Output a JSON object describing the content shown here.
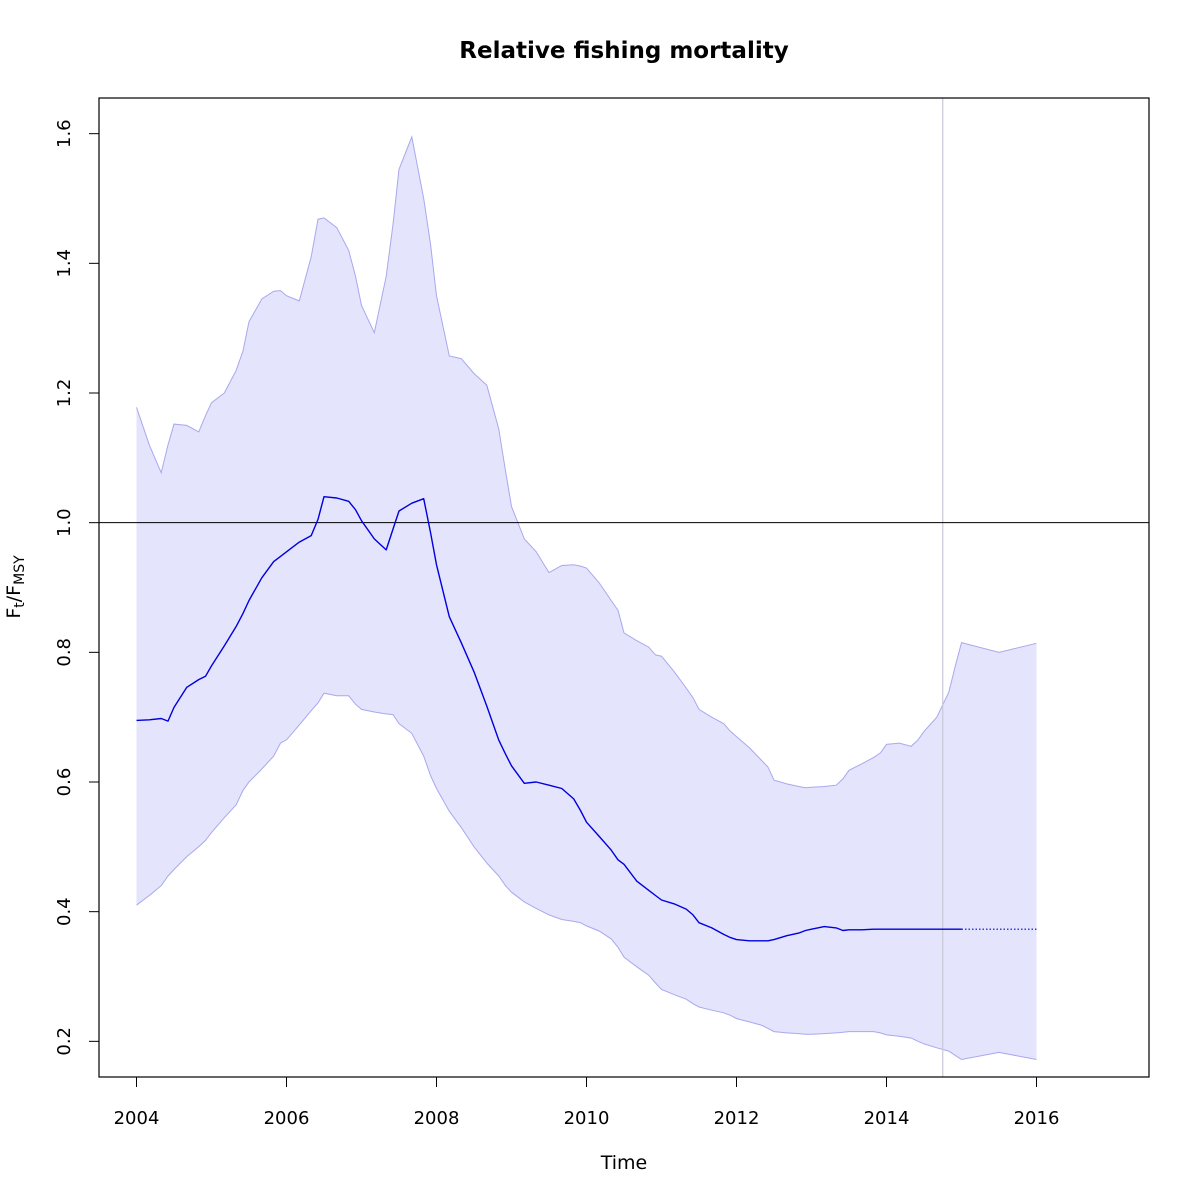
{
  "chart_data": {
    "type": "line",
    "title": "Relative fishing mortality",
    "xlabel": "Time",
    "ylabel": {
      "main": "F",
      "sub1": "t",
      "sep": "/F",
      "sub2": "MSY"
    },
    "xlim": [
      2003.5,
      2017.5
    ],
    "ylim": [
      0.145,
      1.655
    ],
    "x_ticks": [
      2004,
      2006,
      2008,
      2010,
      2012,
      2014,
      2016
    ],
    "y_ticks": [
      0.2,
      0.4,
      0.6,
      0.8,
      1.0,
      1.2,
      1.4,
      1.6
    ],
    "reference_line": 1.0,
    "vertical_line": 2014.75,
    "colors": {
      "line": "#0000dd",
      "band_fill": "#e4e4fc",
      "band_edge": "#a8a8ee",
      "vline": "#c8c8d8",
      "hline": "#000000"
    },
    "series": [
      {
        "role": "estimate",
        "x": [
          2004,
          2004.17,
          2004.33,
          2004.42,
          2004.5,
          2004.67,
          2004.83,
          2004.92,
          2005,
          2005.17,
          2005.33,
          2005.42,
          2005.5,
          2005.67,
          2005.83,
          2005.92,
          2006,
          2006.17,
          2006.33,
          2006.42,
          2006.5,
          2006.67,
          2006.83,
          2006.92,
          2007,
          2007.17,
          2007.33,
          2007.42,
          2007.5,
          2007.67,
          2007.83,
          2007.92,
          2008,
          2008.17,
          2008.33,
          2008.5,
          2008.67,
          2008.83,
          2008.92,
          2009,
          2009.17,
          2009.33,
          2009.5,
          2009.67,
          2009.83,
          2009.92,
          2010,
          2010.17,
          2010.33,
          2010.42,
          2010.5,
          2010.67,
          2010.83,
          2010.92,
          2011,
          2011.17,
          2011.33,
          2011.42,
          2011.5,
          2011.67,
          2011.83,
          2011.92,
          2012,
          2012.17,
          2012.33,
          2012.42,
          2012.5,
          2012.67,
          2012.83,
          2012.92,
          2013,
          2013.17,
          2013.33,
          2013.42,
          2013.5,
          2013.67,
          2013.83,
          2013.92,
          2014,
          2014.17,
          2014.33,
          2014.42,
          2014.5,
          2014.67,
          2014.83,
          2014.92,
          2015
        ],
        "y": [
          0.695,
          0.696,
          0.698,
          0.694,
          0.715,
          0.746,
          0.758,
          0.763,
          0.779,
          0.81,
          0.84,
          0.86,
          0.88,
          0.915,
          0.94,
          0.948,
          0.955,
          0.97,
          0.98,
          1.005,
          1.04,
          1.038,
          1.033,
          1.02,
          1.003,
          0.975,
          0.958,
          0.99,
          1.018,
          1.03,
          1.037,
          0.985,
          0.935,
          0.855,
          0.815,
          0.77,
          0.717,
          0.665,
          0.643,
          0.625,
          0.598,
          0.6,
          0.595,
          0.59,
          0.574,
          0.556,
          0.538,
          0.516,
          0.495,
          0.48,
          0.473,
          0.447,
          0.433,
          0.425,
          0.418,
          0.412,
          0.404,
          0.395,
          0.383,
          0.375,
          0.365,
          0.36,
          0.357,
          0.355,
          0.355,
          0.355,
          0.357,
          0.363,
          0.367,
          0.371,
          0.373,
          0.377,
          0.375,
          0.371,
          0.372,
          0.372,
          0.373,
          0.373,
          0.373,
          0.373,
          0.373,
          0.373,
          0.373,
          0.373,
          0.373,
          0.373,
          0.373
        ]
      },
      {
        "role": "forecast",
        "x": [
          2015,
          2016
        ],
        "y": [
          0.373,
          0.373
        ]
      },
      {
        "role": "upper",
        "x": [
          2004,
          2004.17,
          2004.33,
          2004.42,
          2004.5,
          2004.67,
          2004.83,
          2004.92,
          2005,
          2005.17,
          2005.33,
          2005.42,
          2005.5,
          2005.67,
          2005.83,
          2005.92,
          2006,
          2006.17,
          2006.33,
          2006.42,
          2006.5,
          2006.67,
          2006.83,
          2006.92,
          2007,
          2007.17,
          2007.33,
          2007.42,
          2007.5,
          2007.67,
          2007.83,
          2007.92,
          2008,
          2008.17,
          2008.33,
          2008.5,
          2008.67,
          2008.83,
          2008.92,
          2009,
          2009.17,
          2009.33,
          2009.5,
          2009.67,
          2009.83,
          2009.92,
          2010,
          2010.17,
          2010.33,
          2010.42,
          2010.5,
          2010.67,
          2010.83,
          2010.92,
          2011,
          2011.17,
          2011.33,
          2011.42,
          2011.5,
          2011.67,
          2011.83,
          2011.92,
          2012,
          2012.17,
          2012.33,
          2012.42,
          2012.5,
          2012.67,
          2012.83,
          2012.92,
          2013,
          2013.17,
          2013.33,
          2013.42,
          2013.5,
          2013.67,
          2013.83,
          2013.92,
          2014,
          2014.17,
          2014.33,
          2014.42,
          2014.5,
          2014.67,
          2014.83,
          2014.92,
          2015,
          2015.5,
          2016
        ],
        "y": [
          1.178,
          1.12,
          1.077,
          1.12,
          1.152,
          1.15,
          1.14,
          1.165,
          1.185,
          1.2,
          1.235,
          1.265,
          1.31,
          1.345,
          1.357,
          1.358,
          1.35,
          1.342,
          1.41,
          1.468,
          1.47,
          1.455,
          1.42,
          1.38,
          1.335,
          1.293,
          1.38,
          1.46,
          1.545,
          1.595,
          1.5,
          1.43,
          1.35,
          1.257,
          1.253,
          1.23,
          1.212,
          1.145,
          1.08,
          1.025,
          0.975,
          0.955,
          0.923,
          0.934,
          0.935,
          0.933,
          0.93,
          0.907,
          0.88,
          0.865,
          0.83,
          0.818,
          0.808,
          0.796,
          0.794,
          0.77,
          0.745,
          0.73,
          0.712,
          0.7,
          0.69,
          0.678,
          0.67,
          0.653,
          0.634,
          0.623,
          0.603,
          0.597,
          0.593,
          0.591,
          0.592,
          0.593,
          0.595,
          0.605,
          0.618,
          0.628,
          0.638,
          0.645,
          0.658,
          0.66,
          0.655,
          0.665,
          0.678,
          0.7,
          0.738,
          0.78,
          0.815,
          0.8,
          0.814
        ]
      },
      {
        "role": "lower",
        "x": [
          2004,
          2004.17,
          2004.33,
          2004.42,
          2004.5,
          2004.67,
          2004.83,
          2004.92,
          2005,
          2005.17,
          2005.33,
          2005.42,
          2005.5,
          2005.67,
          2005.83,
          2005.92,
          2006,
          2006.17,
          2006.33,
          2006.42,
          2006.5,
          2006.67,
          2006.83,
          2006.92,
          2007,
          2007.17,
          2007.33,
          2007.42,
          2007.5,
          2007.67,
          2007.83,
          2007.92,
          2008,
          2008.17,
          2008.33,
          2008.5,
          2008.67,
          2008.83,
          2008.92,
          2009,
          2009.17,
          2009.33,
          2009.5,
          2009.67,
          2009.83,
          2009.92,
          2010,
          2010.17,
          2010.33,
          2010.42,
          2010.5,
          2010.67,
          2010.83,
          2010.92,
          2011,
          2011.17,
          2011.33,
          2011.42,
          2011.5,
          2011.67,
          2011.83,
          2011.92,
          2012,
          2012.17,
          2012.33,
          2012.42,
          2012.5,
          2012.67,
          2012.83,
          2012.92,
          2013,
          2013.17,
          2013.33,
          2013.42,
          2013.5,
          2013.67,
          2013.83,
          2013.92,
          2014,
          2014.17,
          2014.33,
          2014.42,
          2014.5,
          2014.67,
          2014.83,
          2014.92,
          2015,
          2015.5,
          2016
        ],
        "y": [
          0.41,
          0.425,
          0.44,
          0.455,
          0.465,
          0.485,
          0.5,
          0.51,
          0.522,
          0.545,
          0.565,
          0.587,
          0.6,
          0.62,
          0.64,
          0.66,
          0.665,
          0.688,
          0.71,
          0.722,
          0.737,
          0.733,
          0.733,
          0.72,
          0.712,
          0.708,
          0.705,
          0.704,
          0.69,
          0.675,
          0.64,
          0.61,
          0.59,
          0.555,
          0.53,
          0.5,
          0.475,
          0.455,
          0.44,
          0.43,
          0.415,
          0.405,
          0.395,
          0.388,
          0.385,
          0.383,
          0.378,
          0.37,
          0.358,
          0.345,
          0.33,
          0.315,
          0.302,
          0.29,
          0.28,
          0.272,
          0.265,
          0.258,
          0.253,
          0.248,
          0.244,
          0.24,
          0.235,
          0.23,
          0.225,
          0.22,
          0.215,
          0.213,
          0.212,
          0.211,
          0.211,
          0.212,
          0.213,
          0.214,
          0.215,
          0.215,
          0.215,
          0.213,
          0.21,
          0.208,
          0.205,
          0.2,
          0.196,
          0.19,
          0.185,
          0.178,
          0.172,
          0.183,
          0.172
        ]
      }
    ]
  }
}
